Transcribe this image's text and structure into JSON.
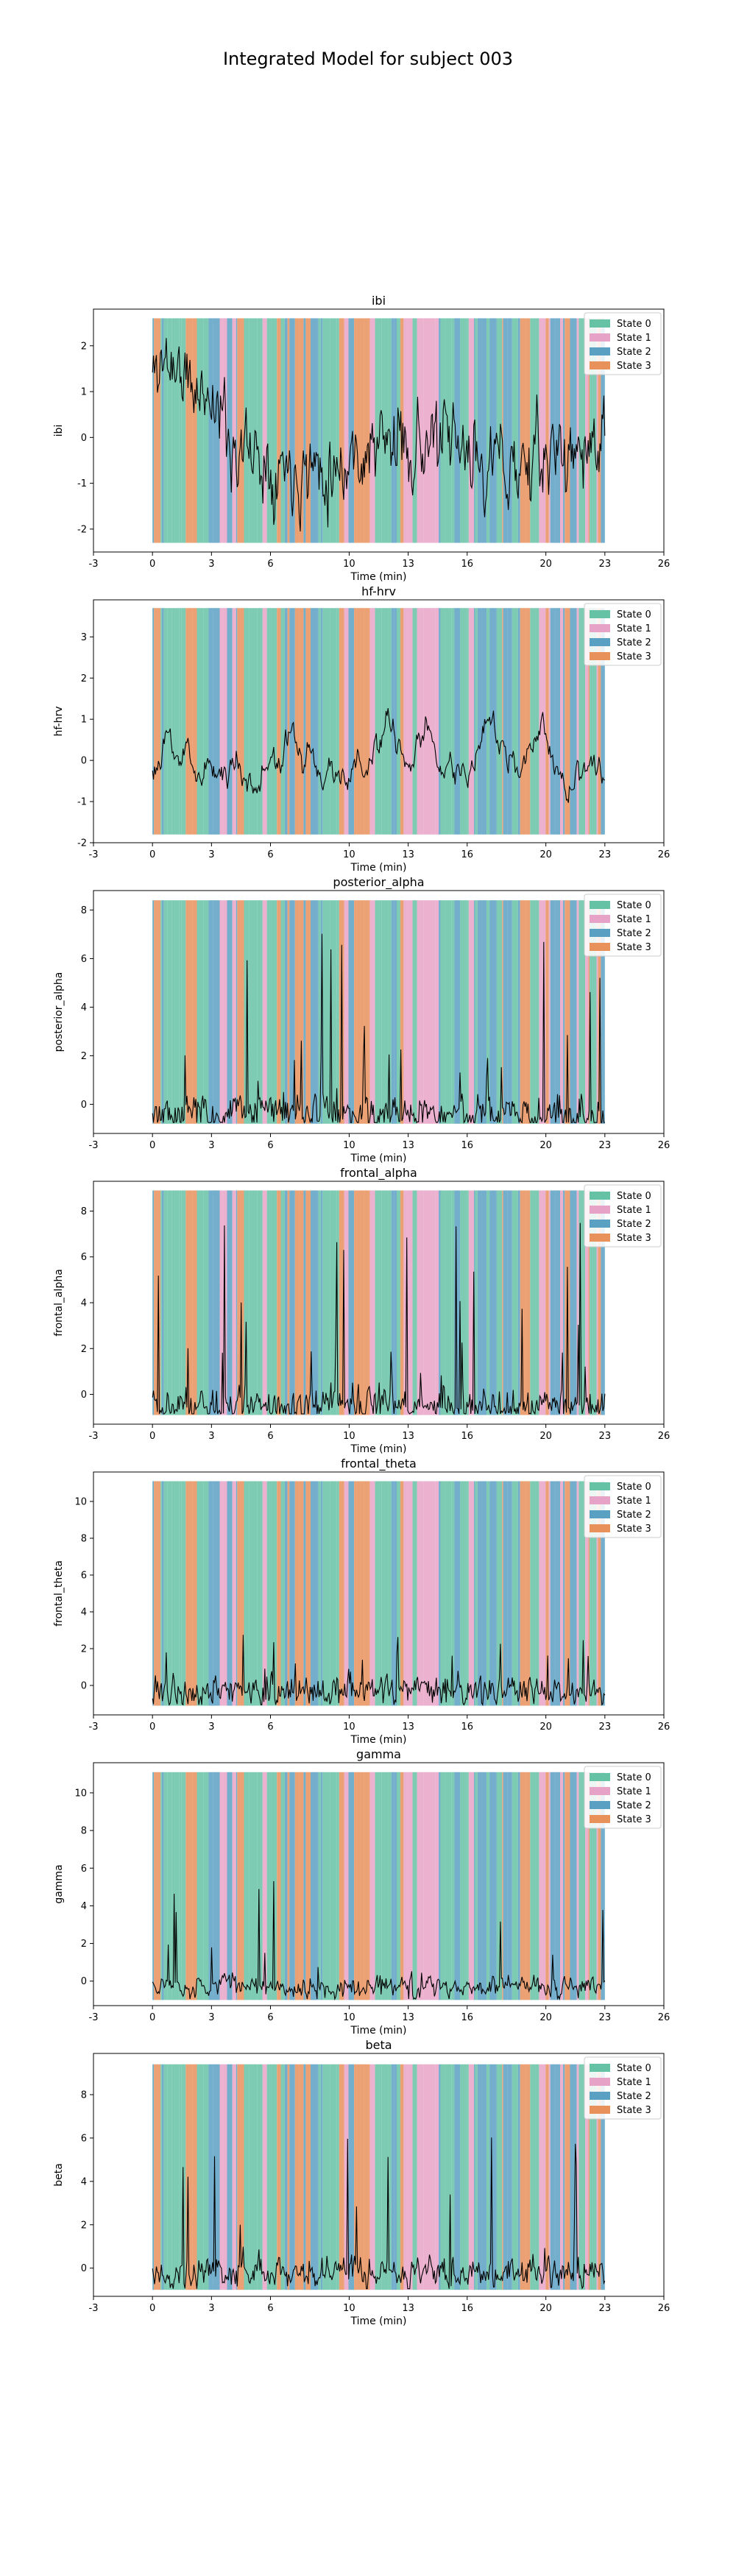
{
  "figure": {
    "suptitle": "Integrated Model for subject 003"
  },
  "colors": {
    "state_0": "#66c2a5",
    "state_1": "#e7a3c7",
    "state_2": "#5aa0c3",
    "state_3": "#e8915a",
    "signal_line": "#000000"
  },
  "chart_data": [
    {
      "type": "line",
      "title": "ibi",
      "xlabel": "Time (min)",
      "ylabel": "ibi",
      "xlim": [
        -3,
        26
      ],
      "xticks": [
        -3,
        0,
        3,
        6,
        10,
        13,
        16,
        20,
        23,
        26
      ],
      "ylim": [
        -2.5,
        2.8
      ],
      "yticks": [
        -2,
        -1,
        0,
        1,
        2
      ],
      "legend": {
        "position": "upper right",
        "entries": [
          "State 0",
          "State 1",
          "State 2",
          "State 3"
        ]
      },
      "signal": {
        "x_range": [
          0,
          23
        ],
        "points": 460,
        "baseline": 0.0,
        "noise": 0.55,
        "smooth": 0.55,
        "spike_prob": 0.0,
        "spike_scale": 0,
        "seed": 11
      },
      "state_band": {
        "x_range": [
          0,
          23
        ],
        "y_range": [
          -2.3,
          2.6
        ]
      }
    },
    {
      "type": "line",
      "title": "hf-hrv",
      "xlabel": "Time (min)",
      "ylabel": "hf-hrv",
      "xlim": [
        -3,
        26
      ],
      "xticks": [
        -3,
        0,
        3,
        6,
        10,
        13,
        16,
        20,
        23,
        26
      ],
      "ylim": [
        -2.0,
        3.9
      ],
      "yticks": [
        -2,
        -1,
        0,
        1,
        2,
        3
      ],
      "legend": {
        "position": "upper right",
        "entries": [
          "State 0",
          "State 1",
          "State 2",
          "State 3"
        ]
      },
      "signal": {
        "x_range": [
          0,
          23
        ],
        "points": 460,
        "baseline": 0.0,
        "noise": 0.9,
        "smooth": 0.93,
        "spike_prob": 0.0,
        "spike_scale": 0,
        "seed": 23
      },
      "state_band": {
        "x_range": [
          0,
          23
        ],
        "y_range": [
          -1.8,
          3.7
        ]
      }
    },
    {
      "type": "line",
      "title": "posterior_alpha",
      "xlabel": "Time (min)",
      "ylabel": "posterior_alpha",
      "xlim": [
        -3,
        26
      ],
      "xticks": [
        -3,
        0,
        3,
        6,
        10,
        13,
        16,
        20,
        23,
        26
      ],
      "ylim": [
        -1.2,
        8.8
      ],
      "yticks": [
        0,
        2,
        4,
        6,
        8
      ],
      "legend": {
        "position": "upper right",
        "entries": [
          "State 0",
          "State 1",
          "State 2",
          "State 3"
        ]
      },
      "signal": {
        "x_range": [
          0,
          23
        ],
        "points": 460,
        "baseline": -0.4,
        "noise": 0.35,
        "smooth": 0.3,
        "spike_prob": 0.07,
        "spike_scale": 7.5,
        "seed": 37
      },
      "state_band": {
        "x_range": [
          0,
          23
        ],
        "y_range": [
          -0.8,
          8.4
        ]
      }
    },
    {
      "type": "line",
      "title": "frontal_alpha",
      "xlabel": "Time (min)",
      "ylabel": "frontal_alpha",
      "xlim": [
        -3,
        26
      ],
      "xticks": [
        -3,
        0,
        3,
        6,
        10,
        13,
        16,
        20,
        23,
        26
      ],
      "ylim": [
        -1.3,
        9.3
      ],
      "yticks": [
        0,
        2,
        4,
        6,
        8
      ],
      "legend": {
        "position": "upper right",
        "entries": [
          "State 0",
          "State 1",
          "State 2",
          "State 3"
        ]
      },
      "signal": {
        "x_range": [
          0,
          23
        ],
        "points": 460,
        "baseline": -0.5,
        "noise": 0.35,
        "smooth": 0.3,
        "spike_prob": 0.07,
        "spike_scale": 8.0,
        "seed": 41
      },
      "state_band": {
        "x_range": [
          0,
          23
        ],
        "y_range": [
          -0.9,
          8.9
        ]
      }
    },
    {
      "type": "line",
      "title": "frontal_theta",
      "xlabel": "Time (min)",
      "ylabel": "frontal_theta",
      "xlim": [
        -3,
        26
      ],
      "xticks": [
        -3,
        0,
        3,
        6,
        10,
        13,
        16,
        20,
        23,
        26
      ],
      "ylim": [
        -1.6,
        11.6
      ],
      "yticks": [
        0,
        2,
        4,
        6,
        8,
        10
      ],
      "legend": {
        "position": "upper right",
        "entries": [
          "State 0",
          "State 1",
          "State 2",
          "State 3"
        ]
      },
      "signal": {
        "x_range": [
          0,
          23
        ],
        "points": 460,
        "baseline": -0.3,
        "noise": 0.35,
        "smooth": 0.3,
        "spike_prob": 0.05,
        "spike_scale": 3.5,
        "seed": 53
      },
      "state_band": {
        "x_range": [
          0,
          23
        ],
        "y_range": [
          -1.1,
          11.1
        ]
      }
    },
    {
      "type": "line",
      "title": "gamma",
      "xlabel": "Time (min)",
      "ylabel": "gamma",
      "xlim": [
        -3,
        26
      ],
      "xticks": [
        -3,
        0,
        3,
        6,
        10,
        13,
        16,
        20,
        23,
        26
      ],
      "ylim": [
        -1.3,
        11.6
      ],
      "yticks": [
        0,
        2,
        4,
        6,
        8,
        10
      ],
      "legend": {
        "position": "upper right",
        "entries": [
          "State 0",
          "State 1",
          "State 2",
          "State 3"
        ]
      },
      "signal": {
        "x_range": [
          0,
          23
        ],
        "points": 460,
        "baseline": -0.3,
        "noise": 0.3,
        "smooth": 0.45,
        "spike_prob": 0.035,
        "spike_scale": 6.0,
        "seed": 67
      },
      "state_band": {
        "x_range": [
          0,
          23
        ],
        "y_range": [
          -1.0,
          11.1
        ]
      }
    },
    {
      "type": "line",
      "title": "beta",
      "xlabel": "Time (min)",
      "ylabel": "beta",
      "xlim": [
        -3,
        26
      ],
      "xticks": [
        -3,
        0,
        3,
        6,
        10,
        13,
        16,
        20,
        23,
        26
      ],
      "ylim": [
        -1.3,
        9.9
      ],
      "yticks": [
        0,
        2,
        4,
        6,
        8
      ],
      "legend": {
        "position": "upper right",
        "entries": [
          "State 0",
          "State 1",
          "State 2",
          "State 3"
        ]
      },
      "signal": {
        "x_range": [
          0,
          23
        ],
        "points": 460,
        "baseline": -0.2,
        "noise": 0.35,
        "smooth": 0.4,
        "spike_prob": 0.045,
        "spike_scale": 6.5,
        "seed": 79
      },
      "state_band": {
        "x_range": [
          0,
          23
        ],
        "y_range": [
          -1.0,
          9.4
        ]
      }
    }
  ]
}
